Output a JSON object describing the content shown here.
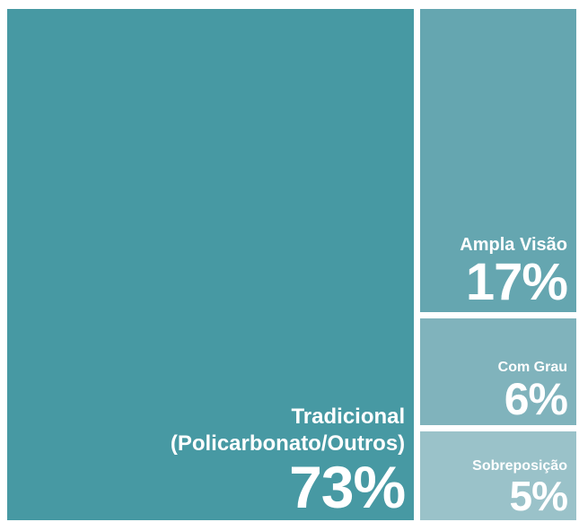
{
  "chart_data": {
    "type": "treemap",
    "categories": [
      "Tradicional (Policarbonato/Outros)",
      "Ampla Visão",
      "Com Grau",
      "Sobreposição"
    ],
    "values": [
      73,
      17,
      6,
      5
    ],
    "value_labels": [
      "73%",
      "17%",
      "6%",
      "5%"
    ],
    "colors": [
      "#4799a3",
      "#65a6b0",
      "#80b3bc",
      "#9ac2c9"
    ]
  }
}
